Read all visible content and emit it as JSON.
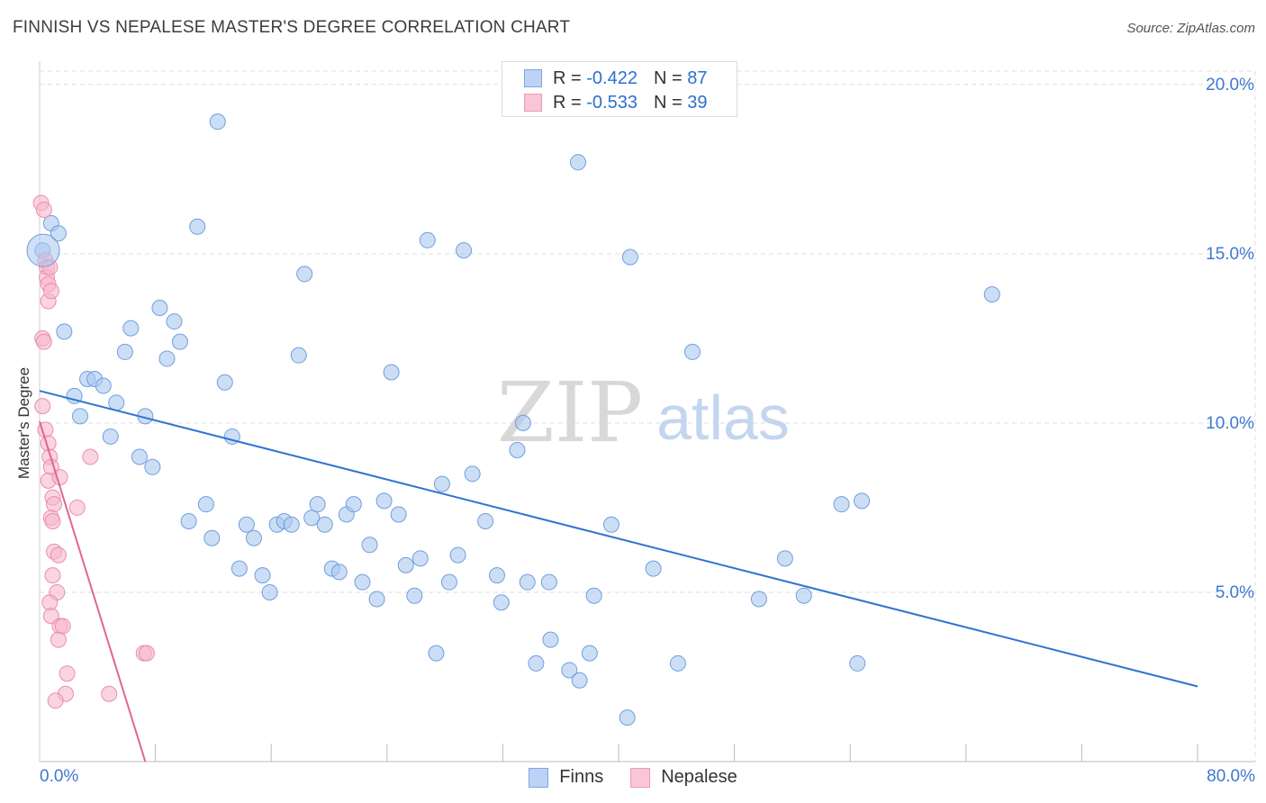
{
  "title": "FINNISH VS NEPALESE MASTER'S DEGREE CORRELATION CHART",
  "source": "Source: ZipAtlas.com",
  "watermark": {
    "zip": "ZIP",
    "atlas": "atlas"
  },
  "legend": {
    "rows": [
      {
        "r_label": "R =",
        "r_value": "-0.422",
        "n_label": "N =",
        "n_value": "87",
        "fill": "#bcd3f5",
        "stroke": "#7ea6e0"
      },
      {
        "r_label": "R =",
        "r_value": "-0.533",
        "n_label": "N =",
        "n_value": "39",
        "fill": "#f9c6d6",
        "stroke": "#ee9ab3"
      }
    ]
  },
  "bottom_legend": {
    "finns": "Finns",
    "nepalese": "Nepalese"
  },
  "colors": {
    "finns_fill": "#aac8f0",
    "finns_stroke": "#6f9fdc",
    "finns_line": "#2f73d2",
    "nepalese_fill": "#f7b8cb",
    "nepalese_stroke": "#ea8eab",
    "nepalese_line": "#e0668f",
    "tick_label": "#3f78cf",
    "grid": "#dddddd",
    "watermark_zip": "#d8d8d8",
    "watermark_atlas": "#c4d6ef"
  },
  "chart_data": {
    "type": "scatter",
    "title": "FINNISH VS NEPALESE MASTER'S DEGREE CORRELATION CHART",
    "xlabel": "",
    "ylabel": "Master's Degree",
    "xlim": [
      0,
      80
    ],
    "ylim": [
      0,
      20.5
    ],
    "x_tick_labels": [
      "0.0%",
      "80.0%"
    ],
    "y_ticks": [
      5,
      10,
      15,
      20
    ],
    "y_tick_labels": [
      "5.0%",
      "10.0%",
      "15.0%",
      "20.0%"
    ],
    "grid": true,
    "series": [
      {
        "name": "Finns",
        "r": -0.422,
        "n": 87,
        "trendline": {
          "x": [
            0,
            80
          ],
          "y": [
            10.95,
            2.22
          ]
        },
        "points": [
          [
            0.2,
            15.1
          ],
          [
            0.8,
            15.9
          ],
          [
            1.3,
            15.6
          ],
          [
            1.7,
            12.7
          ],
          [
            2.4,
            10.8
          ],
          [
            2.8,
            10.2
          ],
          [
            3.3,
            11.3
          ],
          [
            3.8,
            11.3
          ],
          [
            4.4,
            11.1
          ],
          [
            4.9,
            9.6
          ],
          [
            5.3,
            10.6
          ],
          [
            5.9,
            12.1
          ],
          [
            6.3,
            12.8
          ],
          [
            6.9,
            9.0
          ],
          [
            7.3,
            10.2
          ],
          [
            7.8,
            8.7
          ],
          [
            8.3,
            13.4
          ],
          [
            8.8,
            11.9
          ],
          [
            9.3,
            13.0
          ],
          [
            9.7,
            12.4
          ],
          [
            10.3,
            7.1
          ],
          [
            10.9,
            15.8
          ],
          [
            11.5,
            7.6
          ],
          [
            11.9,
            6.6
          ],
          [
            12.3,
            18.9
          ],
          [
            12.8,
            11.2
          ],
          [
            13.3,
            9.6
          ],
          [
            13.8,
            5.7
          ],
          [
            14.3,
            7.0
          ],
          [
            14.8,
            6.6
          ],
          [
            15.4,
            5.5
          ],
          [
            15.9,
            5.0
          ],
          [
            16.4,
            7.0
          ],
          [
            16.9,
            7.1
          ],
          [
            17.4,
            7.0
          ],
          [
            17.9,
            12.0
          ],
          [
            18.3,
            14.4
          ],
          [
            18.8,
            7.2
          ],
          [
            19.2,
            7.6
          ],
          [
            19.7,
            7.0
          ],
          [
            20.2,
            5.7
          ],
          [
            20.7,
            5.6
          ],
          [
            21.2,
            7.3
          ],
          [
            21.7,
            7.6
          ],
          [
            22.3,
            5.3
          ],
          [
            22.8,
            6.4
          ],
          [
            23.3,
            4.8
          ],
          [
            23.8,
            7.7
          ],
          [
            24.3,
            11.5
          ],
          [
            24.8,
            7.3
          ],
          [
            25.3,
            5.8
          ],
          [
            25.9,
            4.9
          ],
          [
            26.3,
            6.0
          ],
          [
            26.8,
            15.4
          ],
          [
            27.4,
            3.2
          ],
          [
            27.8,
            8.2
          ],
          [
            28.3,
            5.3
          ],
          [
            28.9,
            6.1
          ],
          [
            29.3,
            15.1
          ],
          [
            29.9,
            8.5
          ],
          [
            30.8,
            7.1
          ],
          [
            31.6,
            5.5
          ],
          [
            31.9,
            4.7
          ],
          [
            33.0,
            9.2
          ],
          [
            33.4,
            10.0
          ],
          [
            33.7,
            5.3
          ],
          [
            34.3,
            2.9
          ],
          [
            35.2,
            5.3
          ],
          [
            35.3,
            3.6
          ],
          [
            36.6,
            2.7
          ],
          [
            37.2,
            17.7
          ],
          [
            37.3,
            2.4
          ],
          [
            38.0,
            3.2
          ],
          [
            38.3,
            4.9
          ],
          [
            39.5,
            7.0
          ],
          [
            40.6,
            1.3
          ],
          [
            40.8,
            14.9
          ],
          [
            42.4,
            5.7
          ],
          [
            44.1,
            2.9
          ],
          [
            45.1,
            12.1
          ],
          [
            49.7,
            4.8
          ],
          [
            51.5,
            6.0
          ],
          [
            52.8,
            4.9
          ],
          [
            55.4,
            7.6
          ],
          [
            56.5,
            2.9
          ],
          [
            56.8,
            7.7
          ],
          [
            65.8,
            13.8
          ]
        ]
      },
      {
        "name": "Nepalese",
        "r": -0.533,
        "n": 39,
        "trendline": {
          "x": [
            0,
            7.3
          ],
          "y": [
            10.05,
            0.0
          ]
        },
        "points": [
          [
            0.1,
            16.5
          ],
          [
            0.3,
            16.3
          ],
          [
            0.4,
            14.8
          ],
          [
            0.5,
            14.6
          ],
          [
            0.5,
            14.3
          ],
          [
            0.6,
            14.1
          ],
          [
            0.6,
            13.6
          ],
          [
            0.7,
            14.6
          ],
          [
            0.8,
            13.9
          ],
          [
            0.2,
            12.5
          ],
          [
            0.3,
            12.4
          ],
          [
            0.2,
            10.5
          ],
          [
            0.4,
            9.8
          ],
          [
            0.6,
            9.4
          ],
          [
            0.7,
            9.0
          ],
          [
            0.8,
            8.7
          ],
          [
            0.6,
            8.3
          ],
          [
            0.9,
            7.8
          ],
          [
            1.0,
            7.6
          ],
          [
            0.8,
            7.2
          ],
          [
            0.9,
            7.1
          ],
          [
            1.4,
            8.4
          ],
          [
            2.6,
            7.5
          ],
          [
            3.5,
            9.0
          ],
          [
            1.0,
            6.2
          ],
          [
            1.3,
            6.1
          ],
          [
            0.9,
            5.5
          ],
          [
            1.2,
            5.0
          ],
          [
            0.7,
            4.7
          ],
          [
            0.8,
            4.3
          ],
          [
            1.4,
            4.0
          ],
          [
            1.6,
            4.0
          ],
          [
            1.3,
            3.6
          ],
          [
            1.9,
            2.6
          ],
          [
            1.8,
            2.0
          ],
          [
            1.1,
            1.8
          ],
          [
            4.8,
            2.0
          ],
          [
            7.2,
            3.2
          ],
          [
            7.4,
            3.2
          ]
        ]
      }
    ]
  }
}
